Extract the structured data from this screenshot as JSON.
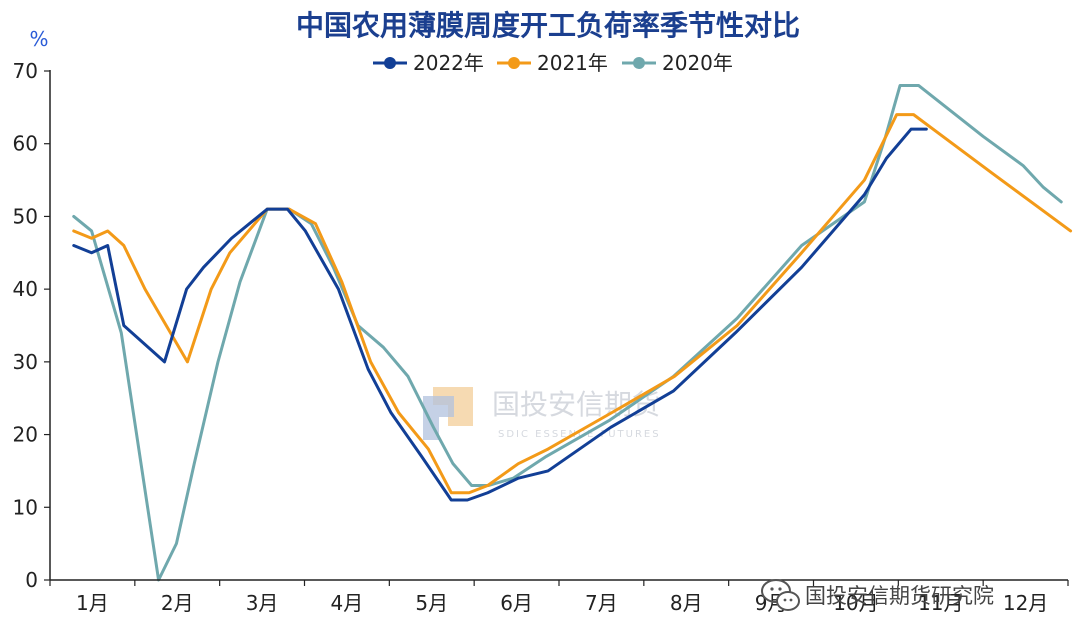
{
  "chart_data": {
    "type": "line",
    "title": "中国农用薄膜周度开工负荷率季节性对比",
    "ylabel": "%",
    "ylim": [
      0,
      70
    ],
    "yticks": [
      0,
      10,
      20,
      30,
      40,
      50,
      60,
      70
    ],
    "xlim": [
      0.5,
      12.5
    ],
    "categories": [
      "1月",
      "2月",
      "3月",
      "4月",
      "5月",
      "6月",
      "7月",
      "8月",
      "9月",
      "10月",
      "11月",
      "12月"
    ],
    "grid": false,
    "legend_position": "top-center",
    "series": [
      {
        "name": "2022年",
        "color": "#123f96",
        "x": [
          0.78,
          0.99,
          1.18,
          1.37,
          1.85,
          2.11,
          2.31,
          2.64,
          2.85,
          3.06,
          3.3,
          3.51,
          3.9,
          4.25,
          4.52,
          4.88,
          5.23,
          5.42,
          5.66,
          6.02,
          6.37,
          7.11,
          7.85,
          8.58,
          9.36,
          10.1,
          10.36,
          10.65,
          10.83
        ],
        "values": [
          46,
          45,
          46,
          35,
          30,
          40,
          43,
          47,
          49,
          51,
          51,
          48,
          40,
          29,
          23,
          17,
          11,
          11,
          12,
          14,
          15,
          21,
          26,
          34,
          43,
          53,
          58,
          62,
          62
        ]
      },
      {
        "name": "2021年",
        "color": "#f39a18",
        "x": [
          0.78,
          0.99,
          1.18,
          1.37,
          1.62,
          2.12,
          2.4,
          2.62,
          3.06,
          3.32,
          3.63,
          3.94,
          4.28,
          4.61,
          4.96,
          5.23,
          5.44,
          5.66,
          6.02,
          6.37,
          7.12,
          7.86,
          8.6,
          9.36,
          10.1,
          10.48,
          10.68,
          11.6,
          12.53
        ],
        "values": [
          48,
          47,
          48,
          46,
          40,
          30,
          40,
          45,
          51,
          51,
          49,
          41,
          30,
          23,
          18,
          12,
          12,
          13,
          16,
          18,
          23,
          28,
          35,
          45,
          55,
          64,
          64,
          56,
          48
        ]
      },
      {
        "name": "2020年",
        "color": "#6fa8ad",
        "x": [
          0.78,
          0.99,
          1.34,
          1.78,
          1.99,
          2.2,
          2.48,
          2.74,
          3.06,
          3.32,
          3.58,
          3.84,
          4.13,
          4.43,
          4.72,
          5.02,
          5.25,
          5.47,
          5.67,
          5.96,
          6.35,
          7.1,
          7.85,
          8.6,
          9.36,
          10.1,
          10.35,
          10.52,
          10.74,
          11.5,
          11.97,
          12.21,
          12.42
        ],
        "values": [
          50,
          48,
          34,
          0,
          5,
          16,
          30,
          41,
          51,
          51,
          49,
          43,
          35,
          32,
          28,
          21,
          16,
          13,
          13,
          14,
          17,
          22,
          28,
          36,
          46,
          52,
          61,
          68,
          68,
          61,
          57,
          54,
          52
        ]
      }
    ]
  },
  "watermark": {
    "text_cn": "国投安信期货",
    "text_en": "SDIC ESSENCE FUTURES"
  },
  "source_mark": {
    "text": "国投安信期货研究院",
    "icon": "wechat-icon"
  }
}
